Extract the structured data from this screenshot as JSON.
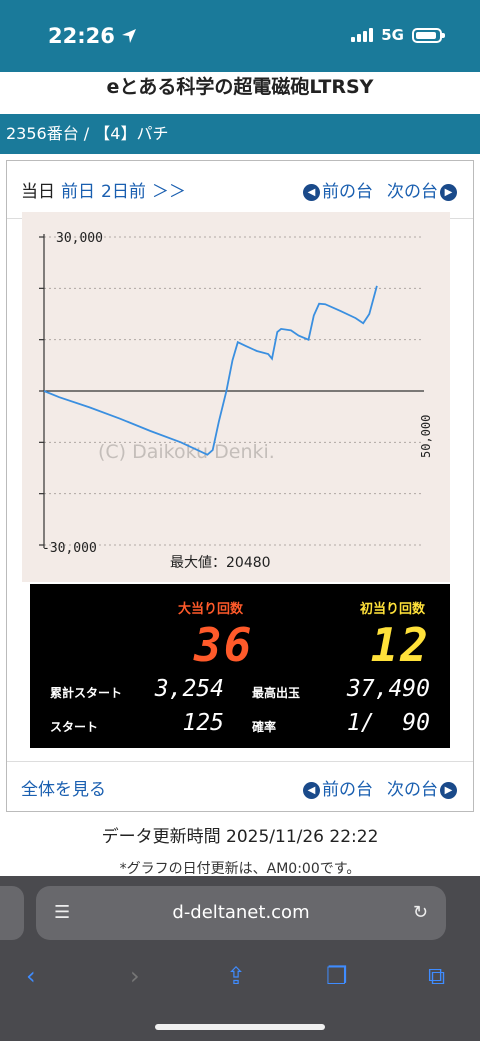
{
  "status_bar": {
    "time": "22:26",
    "network": "5G"
  },
  "page": {
    "title": "eとある科学の超電磁砲LTRSY",
    "breadcrumb": "2356番台 / 【4】パチ"
  },
  "nav_top": {
    "today": "当日",
    "prev_day": "前日",
    "two_days_ago": "2日前",
    "more": "＞＞",
    "prev_machine": "前の台",
    "next_machine": "次の台"
  },
  "nav_bottom": {
    "view_all": "全体を見る",
    "prev_machine": "前の台",
    "next_machine": "次の台"
  },
  "chart_data": {
    "type": "line",
    "y_max_label": "30,000",
    "y_min_label": "-30,000",
    "ylim": [
      -30000,
      30000
    ],
    "x_axis_label": "50,000",
    "xlim": [
      0,
      50000
    ],
    "watermark": "(C) Daikoku Denki.",
    "max_value_label": "最大値：20480",
    "grid": true,
    "series": [
      {
        "points": [
          [
            0,
            0
          ],
          [
            2000,
            -1200
          ],
          [
            6000,
            -3200
          ],
          [
            10000,
            -5400
          ],
          [
            14000,
            -7800
          ],
          [
            18000,
            -10000
          ],
          [
            21500,
            -12400
          ],
          [
            22200,
            -11500
          ],
          [
            23000,
            -6000
          ],
          [
            24000,
            0
          ],
          [
            24800,
            6000
          ],
          [
            25500,
            9500
          ],
          [
            26500,
            8800
          ],
          [
            28000,
            7800
          ],
          [
            29500,
            7200
          ],
          [
            30000,
            6300
          ],
          [
            30700,
            11500
          ],
          [
            31200,
            12100
          ],
          [
            32500,
            11800
          ],
          [
            33500,
            10800
          ],
          [
            34800,
            10000
          ],
          [
            35500,
            14700
          ],
          [
            36200,
            17000
          ],
          [
            37000,
            16900
          ],
          [
            39000,
            15600
          ],
          [
            41000,
            14200
          ],
          [
            42000,
            13200
          ],
          [
            42800,
            15000
          ],
          [
            43800,
            20480
          ]
        ]
      }
    ]
  },
  "stats": {
    "big_bonus_label": "大当り回数",
    "big_bonus_value": "36",
    "first_hit_label": "初当り回数",
    "first_hit_value": "12",
    "cumulative_start_label": "累計スタート",
    "cumulative_start_value": "3,254",
    "max_payout_label": "最高出玉",
    "max_payout_value": "37,490",
    "start_label": "スタート",
    "start_value": "125",
    "probability_label": "確率",
    "probability_value": "1/  90"
  },
  "update": {
    "label": "データ更新時間 2025/11/26 22:22",
    "note": "*グラフの日付更新は、AM0:00です。"
  },
  "browser": {
    "url": "d-deltanet.com"
  }
}
